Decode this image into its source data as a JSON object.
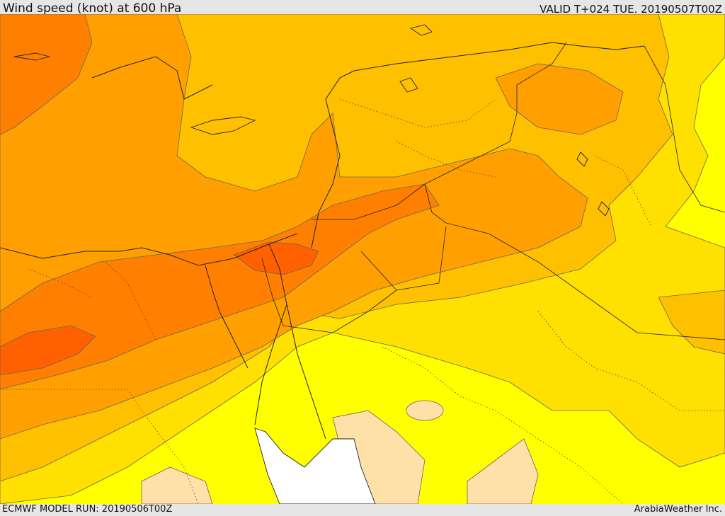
{
  "header": {
    "title": "Wind speed (knot) at 600 hPa",
    "valid_time": "VALID T+024 TUE. 20190507T00Z"
  },
  "footer": {
    "model_run": "ECMWF MODEL RUN: 20190506T00Z",
    "credit": "ArabiaWeather Inc."
  },
  "map": {
    "field": "wind-speed-600hPa",
    "colors": {
      "lightest": "#ffe0a8",
      "yellow": "#ffff00",
      "light-gold": "#ffe000",
      "gold": "#ffc000",
      "orange": "#ffa000",
      "dark-orange": "#ff8000",
      "red-orange": "#ff6000",
      "sea-gap": "#ffffff",
      "contour": "#666666",
      "border": "#222222"
    }
  }
}
